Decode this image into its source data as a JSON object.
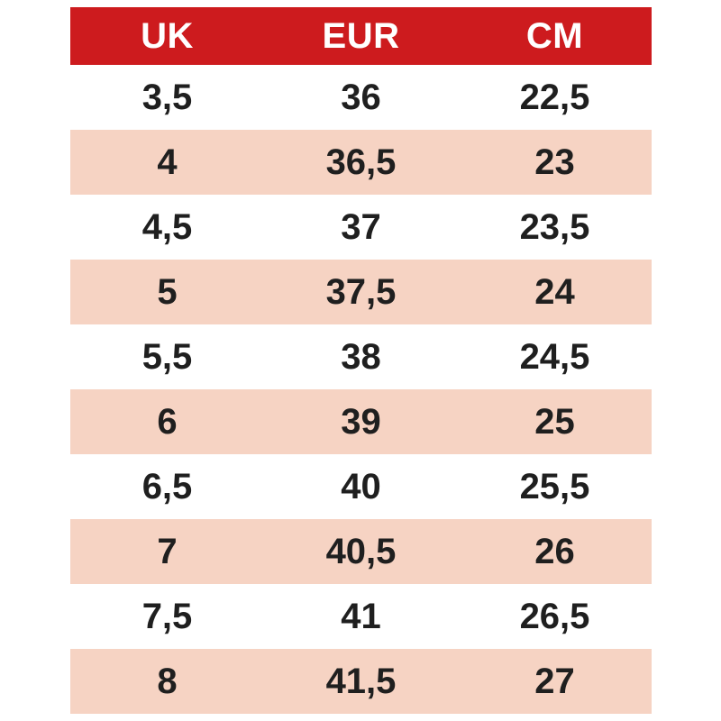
{
  "colors": {
    "header_bg": "#cd1b1e",
    "header_text": "#ffffff",
    "row_bg": "#ffffff",
    "row_alt_bg": "#f6d3c3",
    "cell_text": "#1f1f1f",
    "page_bg": "#ffffff"
  },
  "chart_data": {
    "type": "table",
    "columns": [
      "UK",
      "EUR",
      "CM"
    ],
    "rows": [
      [
        "3,5",
        "36",
        "22,5"
      ],
      [
        "4",
        "36,5",
        "23"
      ],
      [
        "4,5",
        "37",
        "23,5"
      ],
      [
        "5",
        "37,5",
        "24"
      ],
      [
        "5,5",
        "38",
        "24,5"
      ],
      [
        "6",
        "39",
        "25"
      ],
      [
        "6,5",
        "40",
        "25,5"
      ],
      [
        "7",
        "40,5",
        "26"
      ],
      [
        "7,5",
        "41",
        "26,5"
      ],
      [
        "8",
        "41,5",
        "27"
      ]
    ],
    "layout": {
      "striped": true,
      "header_position": "top",
      "grid": false
    }
  }
}
